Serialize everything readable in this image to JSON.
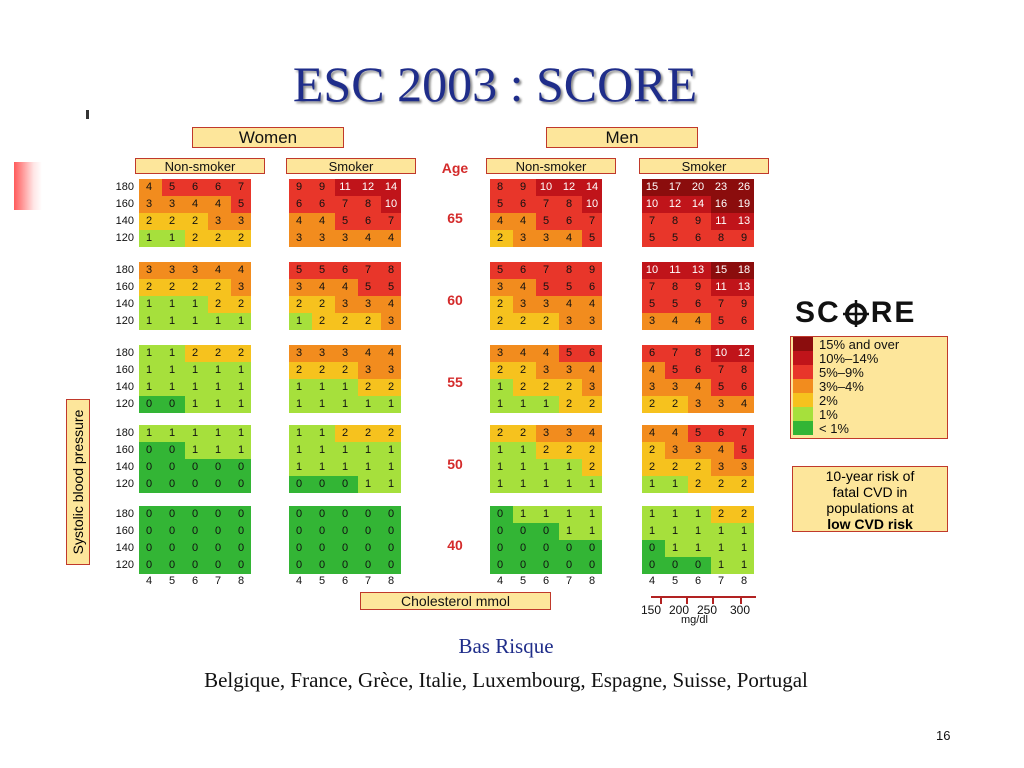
{
  "slide": {
    "title": "ESC 2003 : SCORE",
    "caption_line1": "Bas Risque",
    "caption_line2": "Belgique, France, Grèce, Italie, Luxembourg, Espagne, Suisse, Portugal",
    "page_number": "16"
  },
  "chart_data": {
    "type": "heatmap",
    "title": "",
    "sex_labels": [
      "Women",
      "Men"
    ],
    "smoking_labels": [
      "Non-smoker",
      "Smoker"
    ],
    "age_label": "Age",
    "ages": [
      "65",
      "60",
      "55",
      "50",
      "40"
    ],
    "sbp_values": [
      "180",
      "160",
      "140",
      "120"
    ],
    "cholesterol_values": [
      "4",
      "5",
      "6",
      "7",
      "8"
    ],
    "ylabel": "Systolic blood pressure",
    "xlabel": "Cholesterol mmol",
    "mgdl": {
      "values": [
        "150",
        "200",
        "250",
        "300"
      ],
      "unit": "mg/dl"
    },
    "panels": {
      "women_nonsmoker": [
        [
          [
            4,
            5,
            6,
            6,
            7
          ],
          [
            3,
            3,
            4,
            4,
            5
          ],
          [
            2,
            2,
            2,
            3,
            3
          ],
          [
            1,
            1,
            2,
            2,
            2
          ]
        ],
        [
          [
            3,
            3,
            3,
            4,
            4
          ],
          [
            2,
            2,
            2,
            2,
            3
          ],
          [
            1,
            1,
            1,
            2,
            2
          ],
          [
            1,
            1,
            1,
            1,
            1
          ]
        ],
        [
          [
            1,
            1,
            2,
            2,
            2
          ],
          [
            1,
            1,
            1,
            1,
            1
          ],
          [
            1,
            1,
            1,
            1,
            1
          ],
          [
            0,
            0,
            1,
            1,
            1
          ]
        ],
        [
          [
            1,
            1,
            1,
            1,
            1
          ],
          [
            0,
            0,
            1,
            1,
            1
          ],
          [
            0,
            0,
            0,
            0,
            0
          ],
          [
            0,
            0,
            0,
            0,
            0
          ]
        ],
        [
          [
            0,
            0,
            0,
            0,
            0
          ],
          [
            0,
            0,
            0,
            0,
            0
          ],
          [
            0,
            0,
            0,
            0,
            0
          ],
          [
            0,
            0,
            0,
            0,
            0
          ]
        ]
      ],
      "women_smoker": [
        [
          [
            9,
            9,
            11,
            12,
            14
          ],
          [
            6,
            6,
            7,
            8,
            10
          ],
          [
            4,
            4,
            5,
            6,
            7
          ],
          [
            3,
            3,
            3,
            4,
            4
          ]
        ],
        [
          [
            5,
            5,
            6,
            7,
            8
          ],
          [
            3,
            4,
            4,
            5,
            5
          ],
          [
            2,
            2,
            3,
            3,
            4
          ],
          [
            1,
            2,
            2,
            2,
            3
          ]
        ],
        [
          [
            3,
            3,
            3,
            4,
            4
          ],
          [
            2,
            2,
            2,
            3,
            3
          ],
          [
            1,
            1,
            1,
            2,
            2
          ],
          [
            1,
            1,
            1,
            1,
            1
          ]
        ],
        [
          [
            1,
            1,
            2,
            2,
            2
          ],
          [
            1,
            1,
            1,
            1,
            1
          ],
          [
            1,
            1,
            1,
            1,
            1
          ],
          [
            0,
            0,
            0,
            1,
            1
          ]
        ],
        [
          [
            0,
            0,
            0,
            0,
            0
          ],
          [
            0,
            0,
            0,
            0,
            0
          ],
          [
            0,
            0,
            0,
            0,
            0
          ],
          [
            0,
            0,
            0,
            0,
            0
          ]
        ]
      ],
      "men_nonsmoker": [
        [
          [
            8,
            9,
            10,
            12,
            14
          ],
          [
            5,
            6,
            7,
            8,
            10
          ],
          [
            4,
            4,
            5,
            6,
            7
          ],
          [
            2,
            3,
            3,
            4,
            5
          ]
        ],
        [
          [
            5,
            6,
            7,
            8,
            9
          ],
          [
            3,
            4,
            5,
            5,
            6
          ],
          [
            2,
            3,
            3,
            4,
            4
          ],
          [
            2,
            2,
            2,
            3,
            3
          ]
        ],
        [
          [
            3,
            4,
            4,
            5,
            6
          ],
          [
            2,
            2,
            3,
            3,
            4
          ],
          [
            1,
            2,
            2,
            2,
            3
          ],
          [
            1,
            1,
            1,
            2,
            2
          ]
        ],
        [
          [
            2,
            2,
            3,
            3,
            4
          ],
          [
            1,
            1,
            2,
            2,
            2
          ],
          [
            1,
            1,
            1,
            1,
            2
          ],
          [
            1,
            1,
            1,
            1,
            1
          ]
        ],
        [
          [
            0,
            1,
            1,
            1,
            1
          ],
          [
            0,
            0,
            0,
            1,
            1
          ],
          [
            0,
            0,
            0,
            0,
            0
          ],
          [
            0,
            0,
            0,
            0,
            0
          ]
        ]
      ],
      "men_smoker": [
        [
          [
            15,
            17,
            20,
            23,
            26
          ],
          [
            10,
            12,
            14,
            16,
            19
          ],
          [
            7,
            8,
            9,
            11,
            13
          ],
          [
            5,
            5,
            6,
            8,
            9
          ]
        ],
        [
          [
            10,
            11,
            13,
            15,
            18
          ],
          [
            7,
            8,
            9,
            11,
            13
          ],
          [
            5,
            5,
            6,
            7,
            9
          ],
          [
            3,
            4,
            4,
            5,
            6
          ]
        ],
        [
          [
            6,
            7,
            8,
            10,
            12
          ],
          [
            4,
            5,
            6,
            7,
            8
          ],
          [
            3,
            3,
            4,
            5,
            6
          ],
          [
            2,
            2,
            3,
            3,
            4
          ]
        ],
        [
          [
            4,
            4,
            5,
            6,
            7
          ],
          [
            2,
            3,
            3,
            4,
            5
          ],
          [
            2,
            2,
            2,
            3,
            3
          ],
          [
            1,
            1,
            2,
            2,
            2
          ]
        ],
        [
          [
            1,
            1,
            1,
            2,
            2
          ],
          [
            1,
            1,
            1,
            1,
            1
          ],
          [
            0,
            1,
            1,
            1,
            1
          ],
          [
            0,
            0,
            0,
            1,
            1
          ]
        ]
      ]
    },
    "legend": [
      {
        "label": "15% and over",
        "color": "#8b0d0d"
      },
      {
        "label": "10%–14%",
        "color": "#c0141a"
      },
      {
        "label": "5%–9%",
        "color": "#e8362a"
      },
      {
        "label": "3%–4%",
        "color": "#f28c1e"
      },
      {
        "label": "2%",
        "color": "#f6c21e"
      },
      {
        "label": "1%",
        "color": "#a6e03c"
      },
      {
        "label": "< 1%",
        "color": "#33b535"
      }
    ],
    "risk_note": {
      "line1": "10-year risk of",
      "line2": "fatal CVD in",
      "line3": "populations at",
      "line4": "low CVD risk"
    },
    "logo_text": {
      "left": "SC",
      "right": "RE"
    }
  }
}
